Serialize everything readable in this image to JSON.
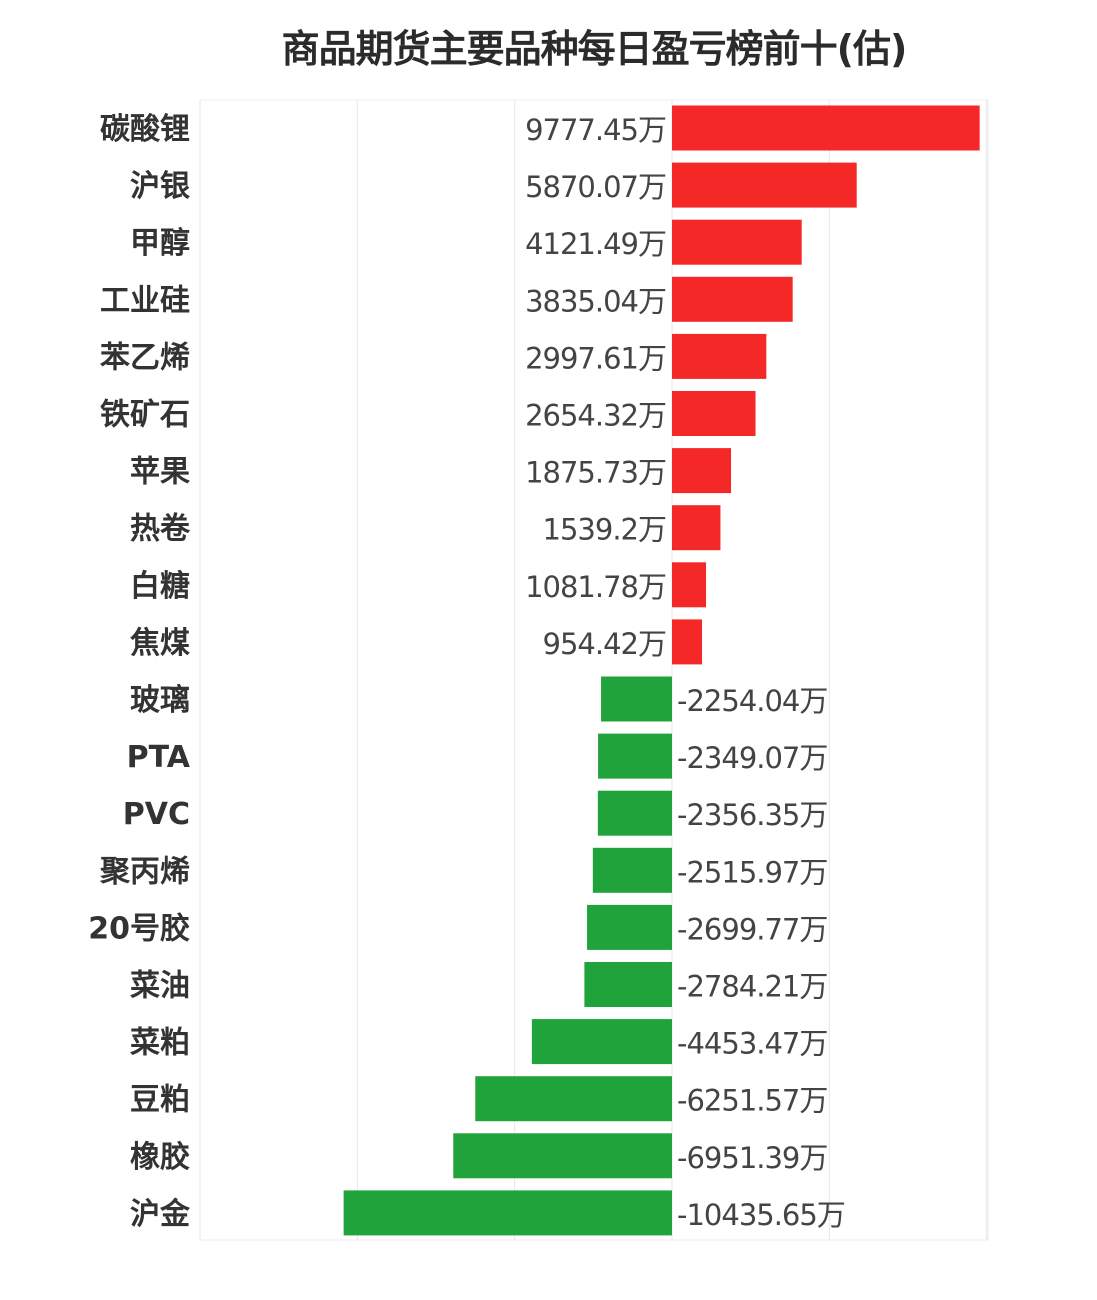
{
  "chart_data": {
    "type": "bar",
    "orientation": "horizontal",
    "title": "商品期货主要品种每日盈亏榜前十(估)",
    "unit_suffix": "万",
    "categories": [
      "碳酸锂",
      "沪银",
      "甲醇",
      "工业硅",
      "苯乙烯",
      "铁矿石",
      "苹果",
      "热卷",
      "白糖",
      "焦煤",
      "玻璃",
      "PTA",
      "PVC",
      "聚丙烯",
      "20号胶",
      "菜油",
      "菜粕",
      "豆粕",
      "橡胶",
      "沪金"
    ],
    "values": [
      9777.45,
      5870.07,
      4121.49,
      3835.04,
      2997.61,
      2654.32,
      1875.73,
      1539.2,
      1081.78,
      954.42,
      -2254.04,
      -2349.07,
      -2356.35,
      -2515.97,
      -2699.77,
      -2784.21,
      -4453.47,
      -6251.57,
      -6951.39,
      -10435.65
    ],
    "value_labels": [
      "9777.45万",
      "5870.07万",
      "4121.49万",
      "3835.04万",
      "2997.61万",
      "2654.32万",
      "1875.73万",
      "1539.2万",
      "1081.78万",
      "954.42万",
      "-2254.04万",
      "-2349.07万",
      "-2356.35万",
      "-2515.97万",
      "-2699.77万",
      "-2784.21万",
      "-4453.47万",
      "-6251.57万",
      "-6951.39万",
      "-10435.65万"
    ],
    "xlim": [
      -15000,
      10000
    ],
    "grid": true,
    "colors": {
      "positive": "#f52828",
      "negative": "#21a33b",
      "grid": "#e6e6e6"
    }
  }
}
